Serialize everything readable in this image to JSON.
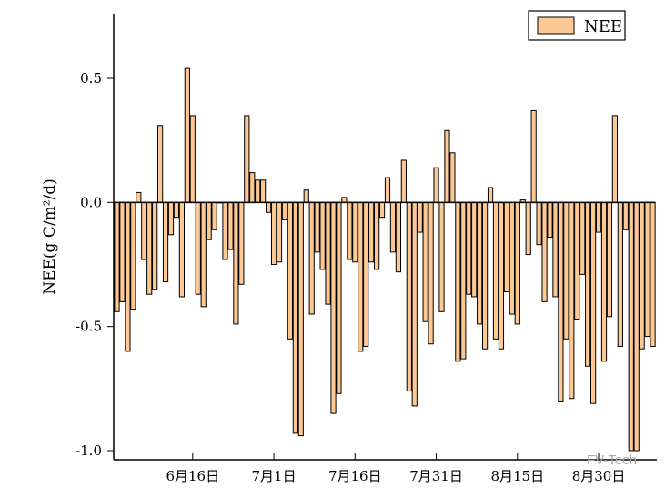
{
  "chart_data": {
    "type": "bar",
    "title": "",
    "xlabel": "",
    "ylabel": "NEE(g C/m²/d)",
    "ylim": [
      -1.0,
      0.76
    ],
    "y_ticks": [
      -1.0,
      -0.5,
      0.0,
      0.5
    ],
    "y_tick_labels": [
      "-1.0",
      "-0.5",
      "0.0",
      "0.5"
    ],
    "x_tick_labels": [
      "6月16日",
      "7月1日",
      "7月16日",
      "7月31日",
      "8月15日",
      "8月30日"
    ],
    "legend": {
      "position": "top-right",
      "entries": [
        "NEE"
      ]
    },
    "grid": false,
    "colors": {
      "bar_fill": "#FCC994",
      "bar_stroke": "#000000"
    },
    "series": [
      {
        "name": "NEE",
        "values": [
          -0.44,
          -0.4,
          -0.6,
          -0.43,
          0.04,
          -0.23,
          -0.37,
          -0.35,
          0.31,
          -0.32,
          -0.13,
          -0.06,
          -0.38,
          0.54,
          0.35,
          -0.37,
          -0.42,
          -0.15,
          -0.11,
          0.0,
          -0.23,
          -0.19,
          -0.49,
          -0.33,
          0.35,
          0.12,
          0.09,
          0.09,
          -0.04,
          -0.25,
          -0.24,
          -0.07,
          -0.55,
          -0.93,
          -0.94,
          0.05,
          -0.45,
          -0.2,
          -0.27,
          -0.41,
          -0.85,
          -0.77,
          0.02,
          -0.23,
          -0.24,
          -0.6,
          -0.58,
          -0.24,
          -0.27,
          -0.06,
          0.1,
          -0.2,
          -0.28,
          0.17,
          -0.76,
          -0.82,
          -0.12,
          -0.48,
          -0.57,
          0.14,
          -0.44,
          0.29,
          0.2,
          -0.64,
          -0.63,
          -0.37,
          -0.38,
          -0.49,
          -0.59,
          0.06,
          -0.55,
          -0.59,
          -0.36,
          -0.45,
          -0.49,
          0.01,
          -0.21,
          0.37,
          -0.17,
          -0.4,
          -0.14,
          -0.38,
          -0.8,
          -0.55,
          -0.79,
          -0.47,
          -0.29,
          -0.66,
          -0.81,
          -0.12,
          -0.64,
          -0.46,
          0.35,
          -0.58,
          -0.11,
          -1.0,
          -1.0,
          -0.59,
          -0.54,
          -0.58
        ]
      }
    ]
  },
  "watermark": "FV-Tech"
}
